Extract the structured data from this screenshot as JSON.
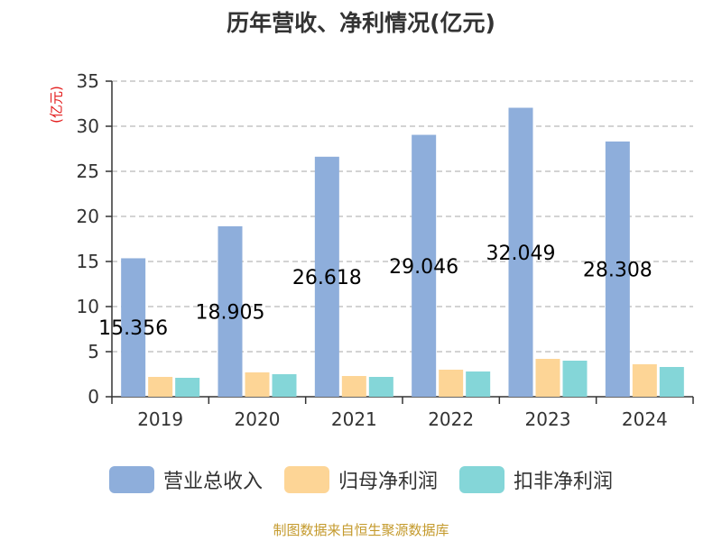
{
  "title": "历年营收、净利情况(亿元)",
  "unit_label": "(亿元)",
  "footer": "制图数据来自恒生聚源数据库",
  "colors": {
    "revenue": "#8eaedb",
    "parent_net_profit": "#fdd596",
    "deducted_net_profit": "#84d6d8",
    "grid": "#b9b9b9",
    "axis": "#333333",
    "unit_label": "#e31a1a",
    "footer": "#c49a2c"
  },
  "chart_data": {
    "type": "bar",
    "title": "历年营收、净利情况(亿元)",
    "ylabel": "(亿元)",
    "xlabel": "",
    "ylim": [
      0,
      35
    ],
    "yticks": [
      0,
      5,
      10,
      15,
      20,
      25,
      30,
      35
    ],
    "grid": true,
    "legend_position": "bottom",
    "categories": [
      "2019",
      "2020",
      "2021",
      "2022",
      "2023",
      "2024"
    ],
    "series": [
      {
        "name": "营业总收入",
        "color_key": "revenue",
        "values": [
          15.356,
          18.905,
          26.618,
          29.046,
          32.049,
          28.308
        ],
        "labels": [
          "15.356",
          "18.905",
          "26.618",
          "29.046",
          "32.049",
          "28.308"
        ]
      },
      {
        "name": "归母净利润",
        "color_key": "parent_net_profit",
        "values": [
          2.2,
          2.7,
          2.3,
          3.0,
          4.2,
          3.6
        ]
      },
      {
        "name": "扣非净利润",
        "color_key": "deducted_net_profit",
        "values": [
          2.1,
          2.5,
          2.2,
          2.8,
          4.0,
          3.3
        ]
      }
    ]
  }
}
